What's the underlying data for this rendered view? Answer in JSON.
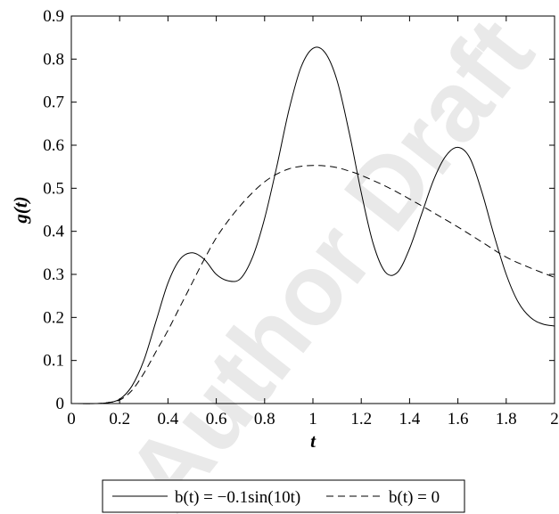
{
  "watermark": "Author Draft",
  "chart_data": {
    "type": "line",
    "xlabel": "t",
    "ylabel": "g(t)",
    "xlim": [
      0,
      2
    ],
    "ylim": [
      0,
      0.9
    ],
    "xticks": [
      "0",
      "0.2",
      "0.4",
      "0.6",
      "0.8",
      "1",
      "1.2",
      "1.4",
      "1.6",
      "1.8",
      "2"
    ],
    "yticks": [
      "0",
      "0.1",
      "0.2",
      "0.3",
      "0.4",
      "0.5",
      "0.6",
      "0.7",
      "0.8",
      "0.9"
    ],
    "grid": false,
    "legend_position": "bottom, below axes",
    "series": [
      {
        "name": "b(t) = −0.1sin(10t)",
        "style": "solid",
        "color": "#000000",
        "x": [
          0,
          0.1,
          0.15,
          0.2,
          0.25,
          0.3,
          0.35,
          0.4,
          0.45,
          0.5,
          0.55,
          0.6,
          0.65,
          0.7,
          0.75,
          0.8,
          0.85,
          0.9,
          0.95,
          1.0,
          1.05,
          1.1,
          1.15,
          1.2,
          1.25,
          1.3,
          1.35,
          1.4,
          1.45,
          1.5,
          1.55,
          1.6,
          1.65,
          1.7,
          1.75,
          1.8,
          1.85,
          1.9,
          1.95,
          2.0
        ],
        "y": [
          0,
          0,
          0.002,
          0.01,
          0.04,
          0.1,
          0.19,
          0.28,
          0.335,
          0.35,
          0.335,
          0.3,
          0.285,
          0.29,
          0.34,
          0.43,
          0.55,
          0.68,
          0.78,
          0.825,
          0.815,
          0.75,
          0.63,
          0.49,
          0.37,
          0.305,
          0.305,
          0.36,
          0.44,
          0.52,
          0.575,
          0.595,
          0.57,
          0.49,
          0.39,
          0.3,
          0.235,
          0.2,
          0.185,
          0.18
        ]
      },
      {
        "name": "b(t) = 0",
        "style": "dashed",
        "color": "#000000",
        "x": [
          0,
          0.1,
          0.15,
          0.2,
          0.25,
          0.3,
          0.35,
          0.4,
          0.45,
          0.5,
          0.55,
          0.6,
          0.65,
          0.7,
          0.75,
          0.8,
          0.85,
          0.9,
          0.95,
          1.0,
          1.05,
          1.1,
          1.15,
          1.2,
          1.3,
          1.4,
          1.5,
          1.6,
          1.7,
          1.8,
          1.9,
          2.0
        ],
        "y": [
          0,
          0,
          0.002,
          0.008,
          0.03,
          0.07,
          0.12,
          0.17,
          0.225,
          0.28,
          0.335,
          0.385,
          0.425,
          0.46,
          0.49,
          0.515,
          0.533,
          0.545,
          0.551,
          0.553,
          0.552,
          0.548,
          0.54,
          0.53,
          0.505,
          0.475,
          0.443,
          0.41,
          0.375,
          0.34,
          0.315,
          0.293
        ]
      }
    ]
  }
}
